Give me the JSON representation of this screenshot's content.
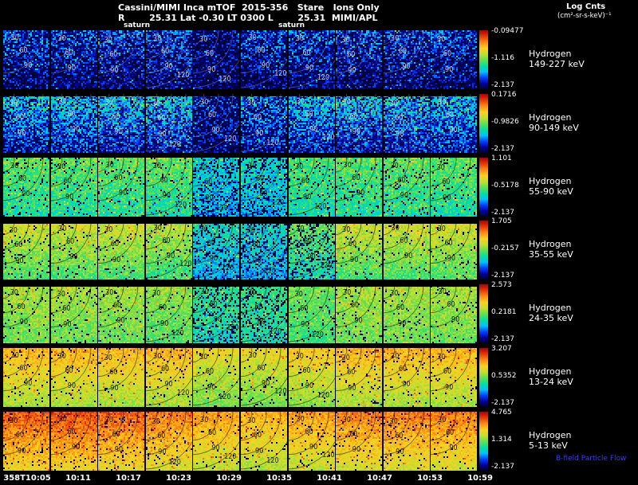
{
  "header": {
    "line1": "Cassini/MIMI Inca mTOF  2015-356   Stare   Ions Only",
    "line2": "R        25.31 Lat -0.30 LT 0300 L        25.31  MIMI/APL",
    "units_line1": "Log Cnts",
    "units_line2": "(cm²-sr-s-keV)⁻¹",
    "saturn_left": "saturn",
    "saturn_mid": "saturn"
  },
  "chart_data": {
    "type": "heatmap",
    "title": "Cassini/MIMI Inca mTOF 2015-356 Stare Ions Only",
    "colorbar_units": "Log Cnts (cm²-sr-s-keV)⁻¹",
    "bfield_label": "B-field Particle Flow",
    "contour_labels": [
      "30",
      "60",
      "90",
      "120"
    ],
    "time_ticks": [
      "358T10:05",
      "10:11",
      "10:17",
      "10:23",
      "10:29",
      "10:35",
      "10:41",
      "10:47",
      "10:53",
      "10:59"
    ],
    "colormap": [
      "#000020",
      "#0000a0",
      "#0040ff",
      "#00c0ff",
      "#00e0a0",
      "#60e050",
      "#c0e030",
      "#fcd020",
      "#ff8c14",
      "#e63c0a",
      "#b40000"
    ],
    "rows": [
      {
        "species": "Hydrogen",
        "energy": "149-227 keV",
        "cbar_max": "-0.09477",
        "cbar_mid": "-1.116",
        "cbar_min": "-2.137",
        "render": {
          "top": 0.2,
          "bottom": 0.05,
          "noise": 0.16,
          "drop": 0.3,
          "topStripe": 0,
          "colmod": [
            1,
            1,
            1,
            1,
            0.5,
            0.9,
            1,
            1,
            1,
            1
          ]
        }
      },
      {
        "species": "Hydrogen",
        "energy": "90-149 keV",
        "cbar_max": "0.1716",
        "cbar_mid": "-0.9826",
        "cbar_min": "-2.137",
        "render": {
          "top": 0.34,
          "bottom": 0.13,
          "noise": 0.15,
          "drop": 0.22,
          "topStripe": 3,
          "colmod": [
            1,
            1,
            1,
            1,
            0.45,
            0.85,
            1,
            1,
            1,
            1
          ]
        }
      },
      {
        "species": "Hydrogen",
        "energy": "55-90 keV",
        "cbar_max": "1.101",
        "cbar_mid": "-0.5178",
        "cbar_min": "-2.137",
        "render": {
          "top": 0.5,
          "bottom": 0.4,
          "noise": 0.1,
          "drop": 0.07,
          "topStripe": 0,
          "colmod": [
            1,
            1,
            1,
            1,
            0.72,
            0.75,
            0.95,
            1,
            1,
            1
          ]
        }
      },
      {
        "species": "Hydrogen",
        "energy": "35-55 keV",
        "cbar_max": "1.705",
        "cbar_mid": "-0.2157",
        "cbar_min": "-2.137",
        "render": {
          "top": 0.64,
          "bottom": 0.46,
          "noise": 0.09,
          "drop": 0.05,
          "topStripe": 4,
          "colmod": [
            1,
            1,
            1,
            0.95,
            0.62,
            0.6,
            0.8,
            1,
            1,
            1
          ]
        }
      },
      {
        "species": "Hydrogen",
        "energy": "24-35 keV",
        "cbar_max": "2.573",
        "cbar_mid": "0.2181",
        "cbar_min": "-2.137",
        "render": {
          "top": 0.58,
          "bottom": 0.5,
          "noise": 0.08,
          "drop": 0.05,
          "topStripe": 3,
          "colmod": [
            1,
            1,
            1,
            0.95,
            0.75,
            0.78,
            0.9,
            1,
            1,
            1
          ]
        }
      },
      {
        "species": "Hydrogen",
        "energy": "13-24 keV",
        "cbar_max": "3.207",
        "cbar_mid": "0.5352",
        "cbar_min": "-2.137",
        "render": {
          "top": 0.74,
          "bottom": 0.56,
          "noise": 0.07,
          "drop": 0.04,
          "topStripe": 0,
          "colmod": [
            1,
            1,
            1,
            1,
            0.9,
            0.9,
            0.95,
            1,
            1,
            1
          ]
        }
      },
      {
        "species": "Hydrogen",
        "energy": "5-13 keV",
        "cbar_max": "4.765",
        "cbar_mid": "1.314",
        "cbar_min": "-2.137",
        "render": {
          "top": 0.82,
          "bottom": 0.62,
          "noise": 0.07,
          "drop": 0.04,
          "topStripe": 0,
          "colmod": [
            1.06,
            1.08,
            1.05,
            1,
            0.95,
            0.92,
            0.95,
            1,
            1,
            1
          ]
        }
      }
    ]
  }
}
